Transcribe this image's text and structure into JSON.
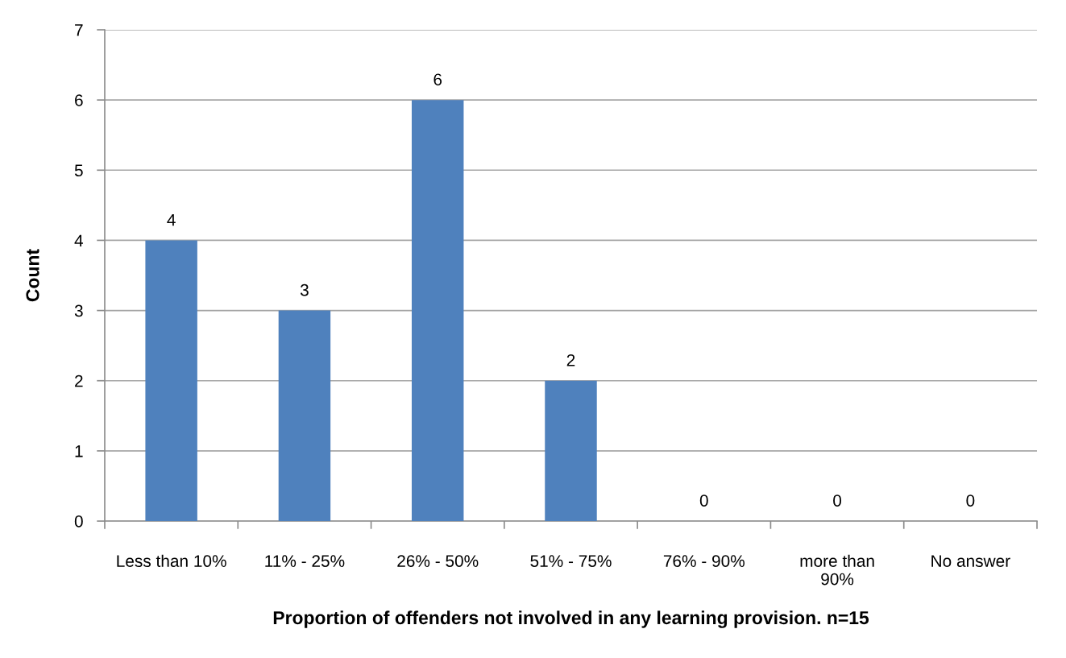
{
  "chart_data": {
    "type": "bar",
    "xlabel": "Proportion of offenders not involved in any learning provision. n=15",
    "ylabel": "Count",
    "categories": [
      "Less than 10%",
      "11% - 25%",
      "26% - 50%",
      "51% - 75%",
      "76% - 90%",
      "more than\n90%",
      "No answer"
    ],
    "values": [
      4,
      3,
      6,
      2,
      0,
      0,
      0
    ],
    "color": "#4f81bd",
    "ylim": [
      0,
      7
    ],
    "yticks": [
      0,
      1,
      2,
      3,
      4,
      5,
      6,
      7
    ],
    "grid": "y",
    "data_labels": true
  }
}
